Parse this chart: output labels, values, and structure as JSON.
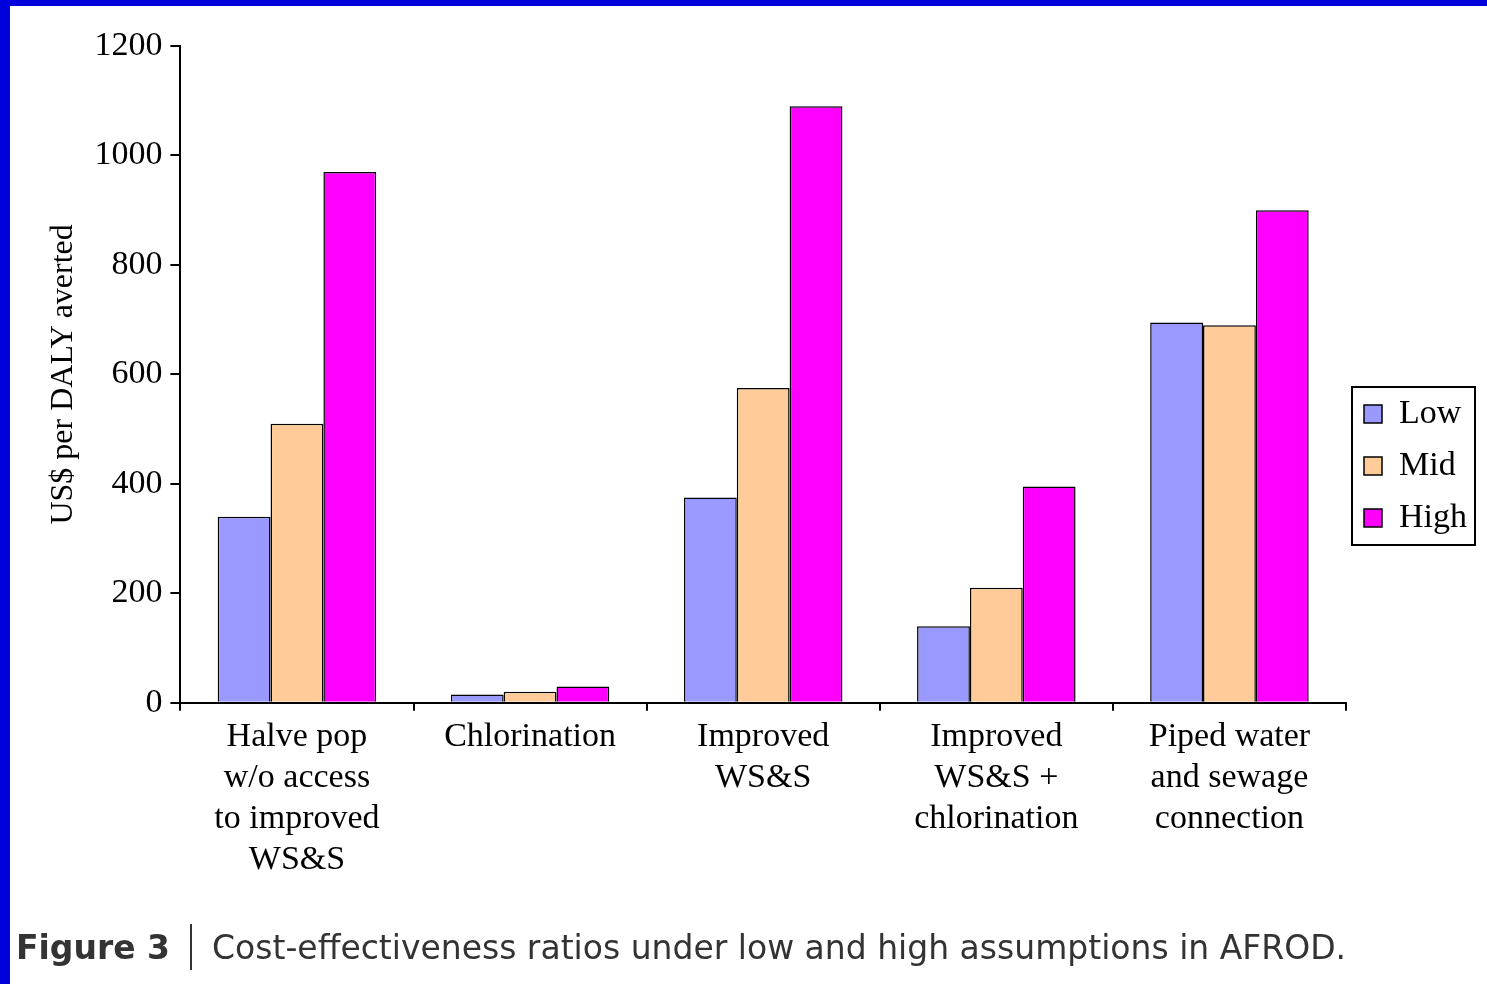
{
  "chart_data": {
    "type": "bar",
    "ylabel": "US$ per DALY averted",
    "categories": [
      "Halve pop w/o access to improved WS&S",
      "Chlorination",
      "Improved WS&S",
      "Improved WS&S + chlorination",
      "Piped water and sewage connection"
    ],
    "series": [
      {
        "name": "Low",
        "color": "#9999ff",
        "values": [
          340,
          15,
          375,
          140,
          695
        ]
      },
      {
        "name": "Mid",
        "color": "#ffcc99",
        "values": [
          510,
          20,
          575,
          210,
          690
        ]
      },
      {
        "name": "High",
        "color": "#ff00ff",
        "values": [
          970,
          30,
          1090,
          395,
          900
        ]
      }
    ],
    "ylim": [
      0,
      1200
    ],
    "yticks": [
      0,
      200,
      400,
      600,
      800,
      1000,
      1200
    ],
    "grid": false,
    "legend": "right",
    "annotations": [
      "Figure 3",
      "Cost-effectiveness ratios under low and high assumptions in AFROD."
    ]
  }
}
